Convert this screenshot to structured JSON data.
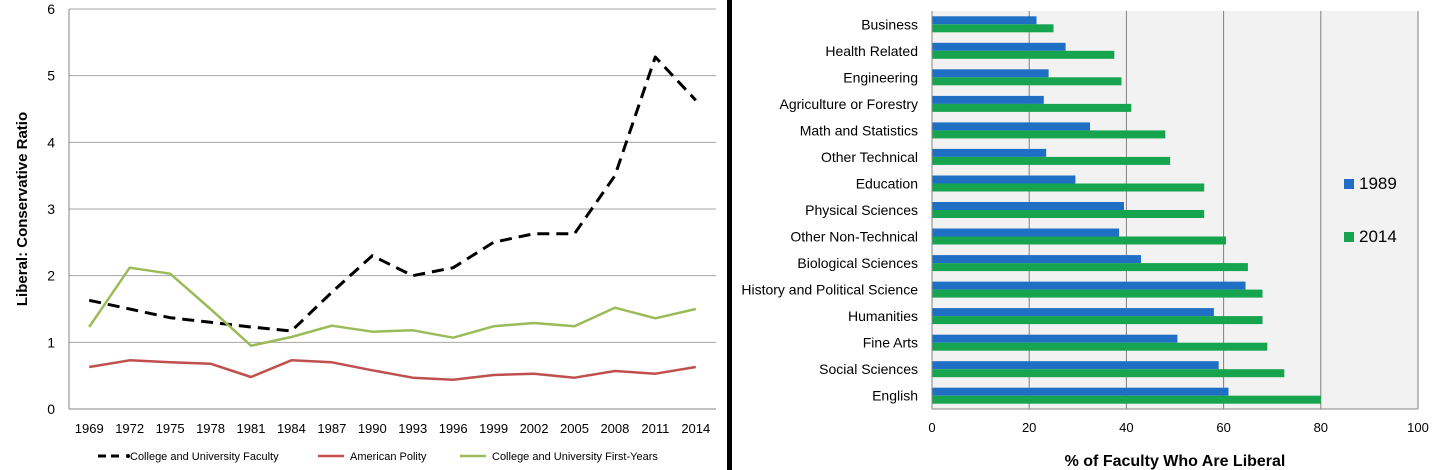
{
  "chart_data": [
    {
      "type": "line",
      "title": "",
      "xlabel": "",
      "ylabel": "Liberal: Conservative Ratio",
      "ylim": [
        0,
        6
      ],
      "yticks": [
        "0",
        "1",
        "2",
        "3",
        "4",
        "5",
        "6"
      ],
      "grid": true,
      "legend_position": "bottom",
      "x": [
        "1969",
        "1972",
        "1975",
        "1978",
        "1981",
        "1984",
        "1987",
        "1990",
        "1993",
        "1996",
        "1999",
        "2002",
        "2005",
        "2008",
        "2011",
        "2014"
      ],
      "series": [
        {
          "name": "College and University Faculty",
          "color": "#000000",
          "style": "dashed",
          "values": [
            1.63,
            1.5,
            1.37,
            1.3,
            1.23,
            1.17,
            1.75,
            2.3,
            2.0,
            2.12,
            2.5,
            2.63,
            2.63,
            3.5,
            5.28,
            4.63
          ]
        },
        {
          "name": "American Polity",
          "color": "#c0504d",
          "style": "solid",
          "values": [
            0.63,
            0.73,
            0.7,
            0.68,
            0.48,
            0.73,
            0.7,
            0.58,
            0.47,
            0.44,
            0.51,
            0.53,
            0.47,
            0.57,
            0.53,
            0.63
          ]
        },
        {
          "name": "College and University First-Years",
          "color": "#9bbb59",
          "style": "solid",
          "values": [
            1.23,
            2.12,
            2.03,
            1.5,
            0.95,
            1.08,
            1.25,
            1.16,
            1.18,
            1.07,
            1.24,
            1.29,
            1.24,
            1.52,
            1.36,
            1.5
          ]
        }
      ]
    },
    {
      "type": "bar",
      "orientation": "horizontal",
      "title": "",
      "xlabel": "% of Faculty Who Are Liberal",
      "ylabel": "",
      "xlim": [
        0,
        100
      ],
      "xticks": [
        "0",
        "20",
        "40",
        "60",
        "80",
        "100"
      ],
      "grid": true,
      "legend_position": "right",
      "categories": [
        "Business",
        "Health Related",
        "Engineering",
        "Agriculture or Forestry",
        "Math and Statistics",
        "Other Technical",
        "Education",
        "Physical Sciences",
        "Other Non-Technical",
        "Biological Sciences",
        "History and Political Science",
        "Humanities",
        "Fine Arts",
        "Social Sciences",
        "English"
      ],
      "series": [
        {
          "name": "1989",
          "color": "#1f6fc5",
          "values": [
            21.5,
            27.5,
            24,
            23,
            32.5,
            23.5,
            29.5,
            39.5,
            38.5,
            43,
            64.5,
            58,
            50.5,
            59,
            61
          ]
        },
        {
          "name": "2014",
          "color": "#17a44e",
          "values": [
            25,
            37.5,
            39,
            41,
            48,
            49,
            56,
            56,
            60.5,
            65,
            68,
            68,
            69,
            72.5,
            80
          ]
        }
      ]
    }
  ]
}
